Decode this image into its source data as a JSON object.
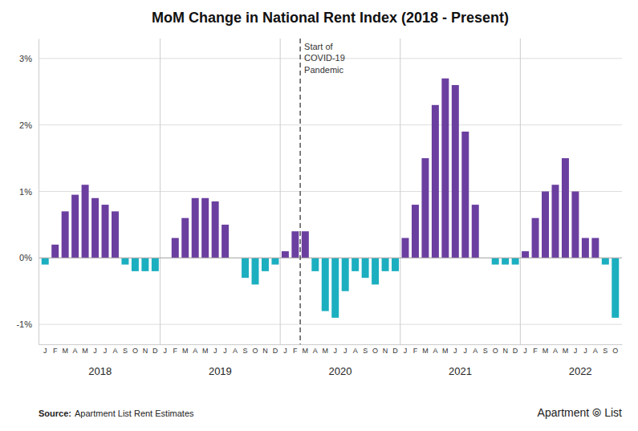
{
  "chart_data": {
    "type": "bar",
    "title": "MoM Change in National Rent Index (2018 - Present)",
    "categories": [
      "J",
      "F",
      "M",
      "A",
      "M",
      "J",
      "J",
      "A",
      "S",
      "O",
      "N",
      "D",
      "J",
      "F",
      "M",
      "A",
      "M",
      "J",
      "J",
      "A",
      "S",
      "O",
      "N",
      "D",
      "J",
      "F",
      "M",
      "A",
      "M",
      "J",
      "J",
      "A",
      "S",
      "O",
      "N",
      "D",
      "J",
      "F",
      "M",
      "A",
      "M",
      "J",
      "J",
      "A",
      "S",
      "O",
      "N",
      "D",
      "J",
      "F",
      "M",
      "A",
      "M",
      "J",
      "J",
      "A",
      "S",
      "O"
    ],
    "values": [
      -0.001,
      0.002,
      0.007,
      0.0095,
      0.011,
      0.009,
      0.008,
      0.007,
      -0.001,
      -0.002,
      -0.002,
      -0.002,
      0.0,
      0.003,
      0.006,
      0.009,
      0.009,
      0.0085,
      0.005,
      0.0,
      -0.003,
      -0.004,
      -0.002,
      -0.001,
      0.001,
      0.004,
      0.004,
      -0.002,
      -0.008,
      -0.009,
      -0.005,
      -0.002,
      -0.003,
      -0.004,
      -0.002,
      -0.002,
      0.003,
      0.008,
      0.015,
      0.023,
      0.027,
      0.026,
      0.019,
      0.008,
      0.0,
      -0.001,
      -0.001,
      -0.001,
      0.001,
      0.006,
      0.01,
      0.011,
      0.015,
      0.01,
      0.003,
      0.003,
      -0.001,
      -0.009
    ],
    "colors": [
      "#1BAFC0",
      "#6B3FA0",
      "#6B3FA0",
      "#6B3FA0",
      "#6B3FA0",
      "#6B3FA0",
      "#6B3FA0",
      "#6B3FA0",
      "#1BAFC0",
      "#1BAFC0",
      "#1BAFC0",
      "#1BAFC0",
      "#6B3FA0",
      "#6B3FA0",
      "#6B3FA0",
      "#6B3FA0",
      "#6B3FA0",
      "#6B3FA0",
      "#6B3FA0",
      "#6B3FA0",
      "#1BAFC0",
      "#1BAFC0",
      "#1BAFC0",
      "#1BAFC0",
      "#6B3FA0",
      "#6B3FA0",
      "#6B3FA0",
      "#1BAFC0",
      "#1BAFC0",
      "#1BAFC0",
      "#1BAFC0",
      "#1BAFC0",
      "#1BAFC0",
      "#1BAFC0",
      "#1BAFC0",
      "#1BAFC0",
      "#6B3FA0",
      "#6B3FA0",
      "#6B3FA0",
      "#6B3FA0",
      "#6B3FA0",
      "#6B3FA0",
      "#6B3FA0",
      "#6B3FA0",
      "#6B3FA0",
      "#1BAFC0",
      "#1BAFC0",
      "#1BAFC0",
      "#6B3FA0",
      "#6B3FA0",
      "#6B3FA0",
      "#6B3FA0",
      "#6B3FA0",
      "#6B3FA0",
      "#6B3FA0",
      "#6B3FA0",
      "#1BAFC0",
      "#1BAFC0"
    ],
    "ylim": [
      -0.013,
      0.033
    ],
    "yticks": [
      {
        "value": -0.01,
        "label": "-1%"
      },
      {
        "value": 0.0,
        "label": "0%"
      },
      {
        "value": 0.01,
        "label": "1%"
      },
      {
        "value": 0.02,
        "label": "2%"
      },
      {
        "value": 0.03,
        "label": "3%"
      }
    ],
    "grid": true,
    "year_labels": [
      "2018",
      "2019",
      "2020",
      "2021",
      "2022"
    ],
    "annotations": [
      {
        "text": "Start of\nCOVID-19\nPandemic",
        "index": 26
      }
    ],
    "source_label": "Source:",
    "source": "Apartment List Rent Estimates",
    "logo": [
      "Apartment",
      "⦾",
      "List"
    ]
  }
}
